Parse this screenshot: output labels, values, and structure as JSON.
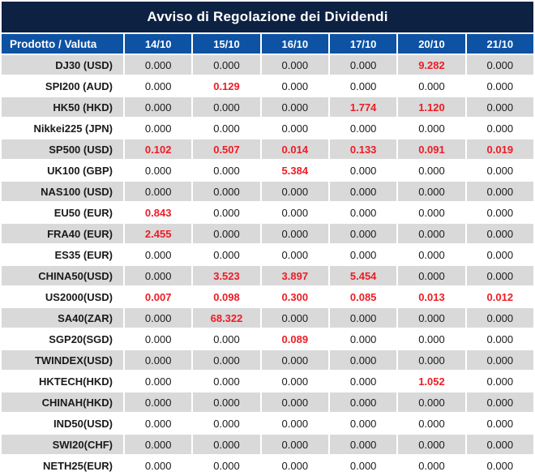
{
  "title": "Avviso di Regolazione dei Dividendi",
  "table": {
    "product_header": "Prodotto / Valuta",
    "date_headers": [
      "14/10",
      "15/10",
      "16/10",
      "17/10",
      "20/10",
      "21/10"
    ],
    "zero_value": "0.000",
    "rows": [
      {
        "product": "DJ30 (USD)",
        "values": [
          "0.000",
          "0.000",
          "0.000",
          "0.000",
          "9.282",
          "0.000"
        ]
      },
      {
        "product": "SPI200 (AUD)",
        "values": [
          "0.000",
          "0.129",
          "0.000",
          "0.000",
          "0.000",
          "0.000"
        ]
      },
      {
        "product": "HK50 (HKD)",
        "values": [
          "0.000",
          "0.000",
          "0.000",
          "1.774",
          "1.120",
          "0.000"
        ]
      },
      {
        "product": "Nikkei225 (JPN)",
        "values": [
          "0.000",
          "0.000",
          "0.000",
          "0.000",
          "0.000",
          "0.000"
        ]
      },
      {
        "product": "SP500 (USD)",
        "values": [
          "0.102",
          "0.507",
          "0.014",
          "0.133",
          "0.091",
          "0.019"
        ]
      },
      {
        "product": "UK100 (GBP)",
        "values": [
          "0.000",
          "0.000",
          "5.384",
          "0.000",
          "0.000",
          "0.000"
        ]
      },
      {
        "product": "NAS100 (USD)",
        "values": [
          "0.000",
          "0.000",
          "0.000",
          "0.000",
          "0.000",
          "0.000"
        ]
      },
      {
        "product": "EU50 (EUR)",
        "values": [
          "0.843",
          "0.000",
          "0.000",
          "0.000",
          "0.000",
          "0.000"
        ]
      },
      {
        "product": "FRA40 (EUR)",
        "values": [
          "2.455",
          "0.000",
          "0.000",
          "0.000",
          "0.000",
          "0.000"
        ]
      },
      {
        "product": "ES35 (EUR)",
        "values": [
          "0.000",
          "0.000",
          "0.000",
          "0.000",
          "0.000",
          "0.000"
        ]
      },
      {
        "product": "CHINA50(USD)",
        "values": [
          "0.000",
          "3.523",
          "3.897",
          "5.454",
          "0.000",
          "0.000"
        ]
      },
      {
        "product": "US2000(USD)",
        "values": [
          "0.007",
          "0.098",
          "0.300",
          "0.085",
          "0.013",
          "0.012"
        ]
      },
      {
        "product": "SA40(ZAR)",
        "values": [
          "0.000",
          "68.322",
          "0.000",
          "0.000",
          "0.000",
          "0.000"
        ]
      },
      {
        "product": "SGP20(SGD)",
        "values": [
          "0.000",
          "0.000",
          "0.089",
          "0.000",
          "0.000",
          "0.000"
        ]
      },
      {
        "product": "TWINDEX(USD)",
        "values": [
          "0.000",
          "0.000",
          "0.000",
          "0.000",
          "0.000",
          "0.000"
        ]
      },
      {
        "product": "HKTECH(HKD)",
        "values": [
          "0.000",
          "0.000",
          "0.000",
          "0.000",
          "1.052",
          "0.000"
        ]
      },
      {
        "product": "CHINAH(HKD)",
        "values": [
          "0.000",
          "0.000",
          "0.000",
          "0.000",
          "0.000",
          "0.000"
        ]
      },
      {
        "product": "IND50(USD)",
        "values": [
          "0.000",
          "0.000",
          "0.000",
          "0.000",
          "0.000",
          "0.000"
        ]
      },
      {
        "product": "SWI20(CHF)",
        "values": [
          "0.000",
          "0.000",
          "0.000",
          "0.000",
          "0.000",
          "0.000"
        ]
      },
      {
        "product": "NETH25(EUR)",
        "values": [
          "0.000",
          "0.000",
          "0.000",
          "0.000",
          "0.000",
          "0.000"
        ]
      }
    ]
  },
  "colors": {
    "title_bg": "#0d2142",
    "header_bg": "#0e52a3",
    "header_text": "#ffffff",
    "row_bg": "#ffffff",
    "row_alt_bg": "#d9d9d9",
    "grid_line": "#ffffff",
    "text_dark": "#1a1a1a",
    "value_red": "#ee1c25"
  }
}
